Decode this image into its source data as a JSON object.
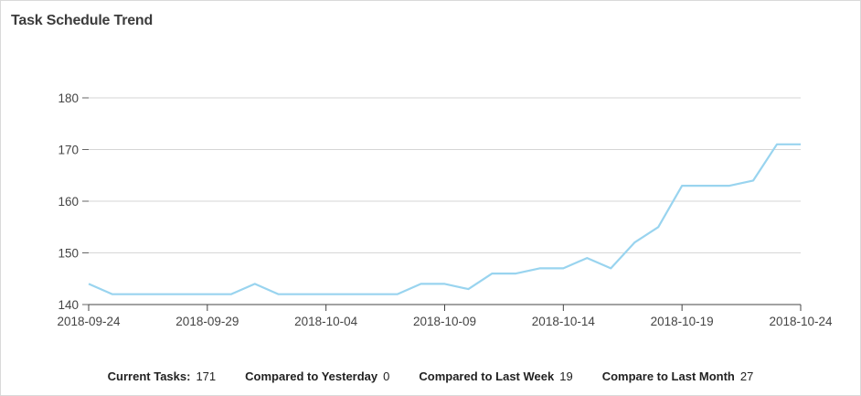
{
  "panel": {
    "title": "Task Schedule Trend"
  },
  "chart_data": {
    "type": "line",
    "title": "Task Schedule Trend",
    "xlabel": "",
    "ylabel": "",
    "ylim": [
      140,
      180
    ],
    "yticks": [
      140,
      150,
      160,
      170,
      180
    ],
    "x": [
      "2018-09-24",
      "2018-09-25",
      "2018-09-26",
      "2018-09-27",
      "2018-09-28",
      "2018-09-29",
      "2018-09-30",
      "2018-10-01",
      "2018-10-02",
      "2018-10-03",
      "2018-10-04",
      "2018-10-05",
      "2018-10-06",
      "2018-10-07",
      "2018-10-08",
      "2018-10-09",
      "2018-10-10",
      "2018-10-11",
      "2018-10-12",
      "2018-10-13",
      "2018-10-14",
      "2018-10-15",
      "2018-10-16",
      "2018-10-17",
      "2018-10-18",
      "2018-10-19",
      "2018-10-20",
      "2018-10-21",
      "2018-10-22",
      "2018-10-23",
      "2018-10-24"
    ],
    "xticks": [
      "2018-09-24",
      "2018-09-29",
      "2018-10-04",
      "2018-10-09",
      "2018-10-14",
      "2018-10-19",
      "2018-10-24"
    ],
    "series": [
      {
        "values": [
          144,
          142,
          142,
          142,
          142,
          142,
          142,
          144,
          142,
          142,
          142,
          142,
          142,
          142,
          144,
          144,
          143,
          146,
          146,
          147,
          147,
          149,
          147,
          152,
          155,
          163,
          163,
          163,
          164,
          171,
          171
        ],
        "color": "#99d4ef"
      }
    ],
    "grid": true,
    "gridColor": "#d6d6d6"
  },
  "footer": {
    "current_label": "Current Tasks:",
    "current_value": "171",
    "yesterday_label": "Compared to Yesterday",
    "yesterday_value": "0",
    "week_label": "Compared to Last Week",
    "week_value": "19",
    "month_label": "Compare to Last Month",
    "month_value": "27"
  }
}
